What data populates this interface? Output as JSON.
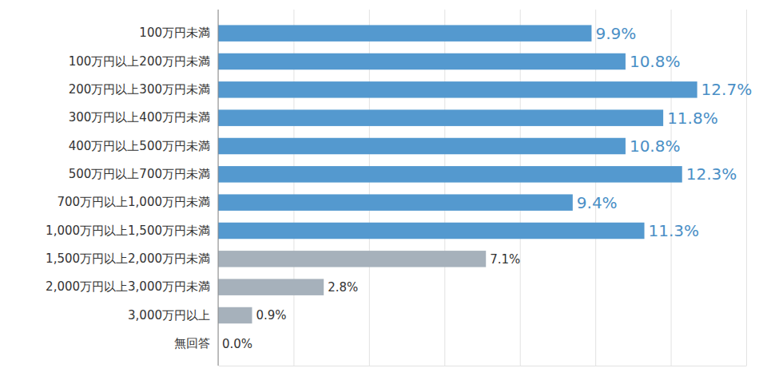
{
  "chart_data": {
    "type": "bar",
    "orientation": "horizontal",
    "categories": [
      "100万円未満",
      "100万円以上200万円未満",
      "200万円以上300万円未満",
      "300万円以上400万円未満",
      "400万円以上500万円未満",
      "500万円以上700万円未満",
      "700万円以上1,000万円未満",
      "1,000万円以上1,500万円未満",
      "1,500万円以上2,000万円未満",
      "2,000万円以上3,000万円未満",
      "3,000万円以上",
      "無回答"
    ],
    "values": [
      9.9,
      10.8,
      12.7,
      11.8,
      10.8,
      12.3,
      9.4,
      11.3,
      7.1,
      2.8,
      0.9,
      0.0
    ],
    "value_labels": [
      "9.9%",
      "10.8%",
      "12.7%",
      "11.8%",
      "10.8%",
      "12.3%",
      "9.4%",
      "11.3%",
      "7.1%",
      "2.8%",
      "0.9%",
      "0.0%"
    ],
    "colors": [
      "#5499cf",
      "#5499cf",
      "#5499cf",
      "#5499cf",
      "#5499cf",
      "#5499cf",
      "#5499cf",
      "#5499cf",
      "#a6b1bb",
      "#a6b1bb",
      "#a6b1bb",
      "#a6b1bb"
    ],
    "xlim": [
      0,
      14
    ],
    "xticks": [
      0,
      2,
      4,
      6,
      8,
      10,
      12,
      14
    ],
    "grid": true,
    "data_labels": true,
    "tick_labels": "y"
  }
}
